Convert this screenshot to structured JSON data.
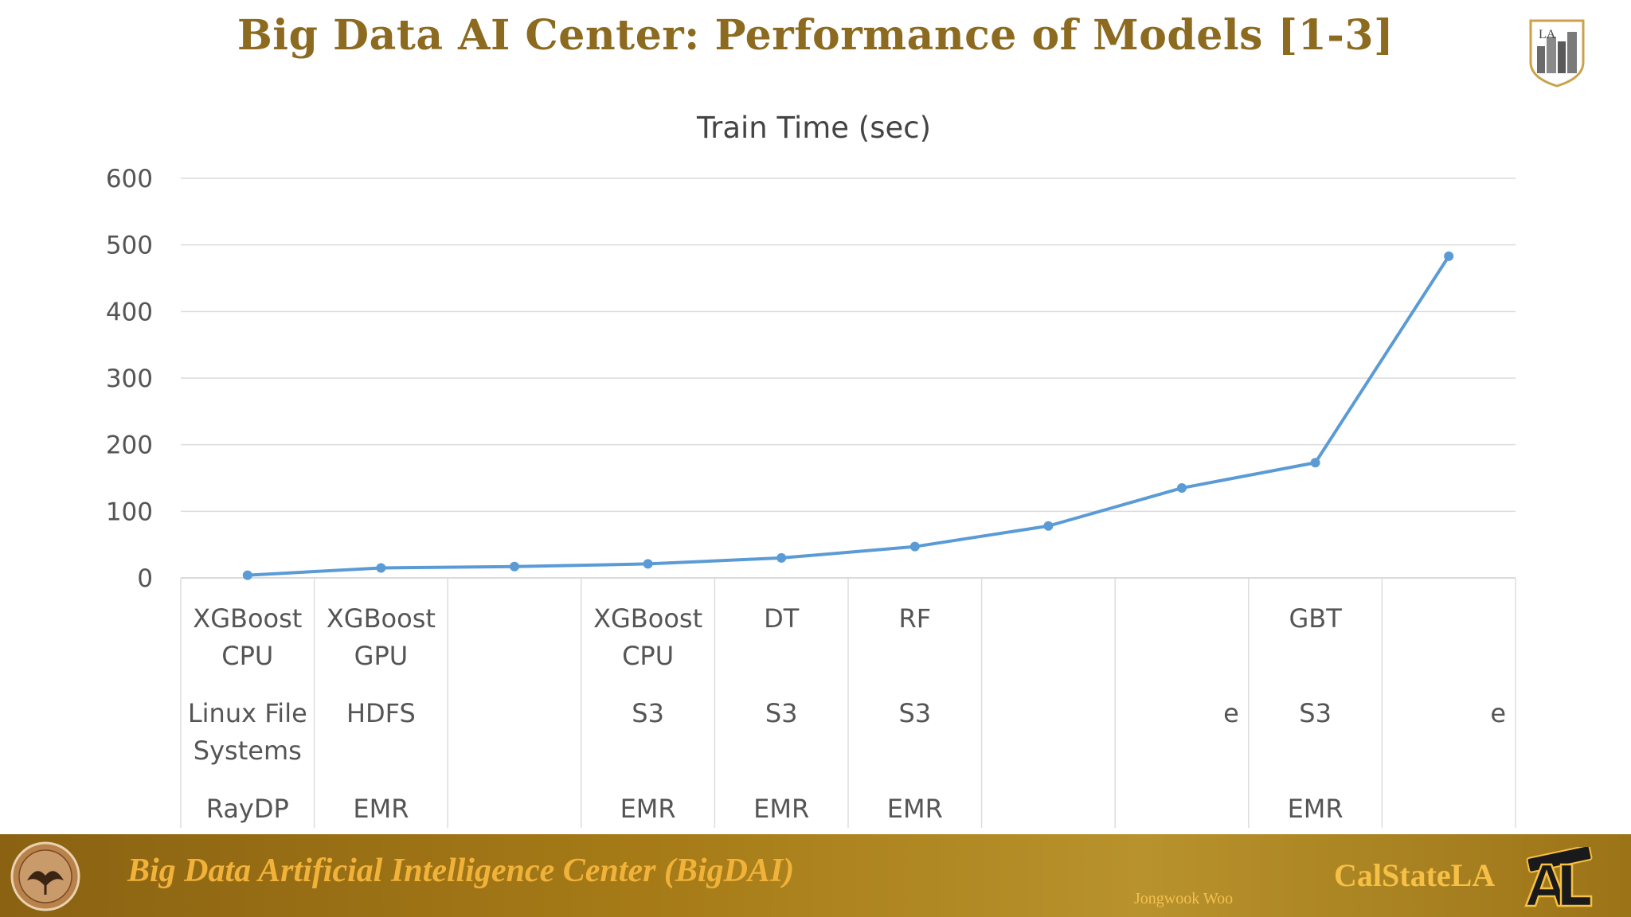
{
  "slide": {
    "title": "Big Data AI Center: Performance of Models [1-3]",
    "logo_icon": "calstatela-building-logo",
    "logo_text": "LA"
  },
  "footer": {
    "emblem_icon": "phoenix-seal-icon",
    "center_name": "Big Data Artificial Intelligence Center (BigDAI)",
    "author": "Jongwook Woo",
    "brand": "CalStateLA",
    "brand_logo_icon": "cal-state-la-logo",
    "colors": {
      "bar": "#a67b17",
      "text": "#f1b23a"
    }
  },
  "chart_data": {
    "type": "line",
    "title": "Train Time (sec)",
    "xlabel": "",
    "ylabel": "",
    "ylim": [
      0,
      600
    ],
    "yticks": [
      0,
      100,
      200,
      300,
      400,
      500,
      600
    ],
    "grid": true,
    "legend": "none",
    "line_color": "#5b9bd5",
    "categories": [
      {
        "lines": [
          "XGBoost",
          "CPU",
          "Linux File",
          "Systems",
          "RayDP"
        ]
      },
      {
        "lines": [
          "XGBoost",
          "GPU",
          "HDFS",
          "EMR"
        ]
      },
      {
        "lines": []
      },
      {
        "lines": [
          "XGBoost",
          "CPU",
          "S3",
          "EMR"
        ]
      },
      {
        "lines": [
          "DT",
          "S3",
          "EMR"
        ]
      },
      {
        "lines": [
          "RF",
          "S3",
          "EMR"
        ]
      },
      {
        "lines": []
      },
      {
        "lines": [
          "e"
        ]
      },
      {
        "lines": [
          "GBT",
          "S3",
          "EMR"
        ]
      },
      {
        "lines": [
          "e"
        ]
      }
    ],
    "series": [
      {
        "values": [
          4,
          15,
          17,
          21,
          30,
          47,
          78,
          135,
          173,
          483
        ]
      }
    ]
  }
}
